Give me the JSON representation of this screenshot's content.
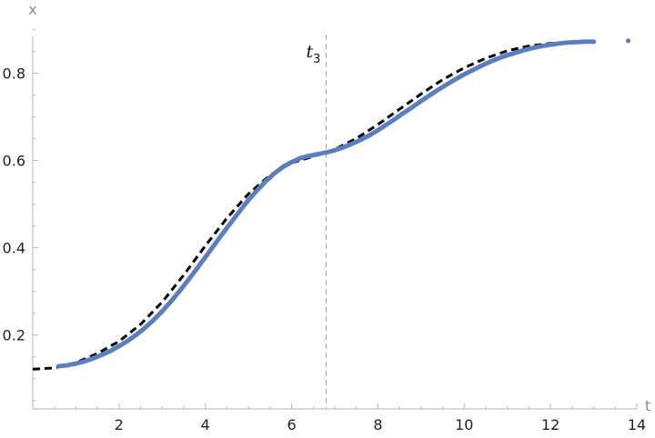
{
  "chart_data": {
    "type": "scatter",
    "title": "",
    "xlabel": "t",
    "ylabel": "x",
    "xlim": [
      0,
      14
    ],
    "ylim": [
      0.03,
      0.93
    ],
    "x_ticks": [
      2,
      4,
      6,
      8,
      10,
      12,
      14
    ],
    "y_ticks": [
      0.2,
      0.4,
      0.6,
      0.8
    ],
    "grid": false,
    "legend": "none",
    "annotation": {
      "base": "t",
      "subscript": "3",
      "x": 6.8,
      "style": "dashed vertical line"
    },
    "series": [
      {
        "style": "points",
        "color": "#5b7fbe",
        "points": [
          [
            0.6,
            0.128
          ],
          [
            0.8,
            0.13
          ],
          [
            1.0,
            0.134
          ],
          [
            1.2,
            0.139
          ],
          [
            1.4,
            0.146
          ],
          [
            1.6,
            0.154
          ],
          [
            1.8,
            0.163
          ],
          [
            2.0,
            0.174
          ],
          [
            2.2,
            0.186
          ],
          [
            2.4,
            0.2
          ],
          [
            2.6,
            0.216
          ],
          [
            2.8,
            0.234
          ],
          [
            3.0,
            0.254
          ],
          [
            3.2,
            0.276
          ],
          [
            3.4,
            0.3
          ],
          [
            3.6,
            0.325
          ],
          [
            3.8,
            0.351
          ],
          [
            4.0,
            0.378
          ],
          [
            4.2,
            0.405
          ],
          [
            4.4,
            0.432
          ],
          [
            4.6,
            0.458
          ],
          [
            4.8,
            0.484
          ],
          [
            5.0,
            0.509
          ],
          [
            5.2,
            0.531
          ],
          [
            5.4,
            0.552
          ],
          [
            5.6,
            0.57
          ],
          [
            5.8,
            0.585
          ],
          [
            6.0,
            0.596
          ],
          [
            6.2,
            0.605
          ],
          [
            6.4,
            0.61
          ],
          [
            6.6,
            0.614
          ],
          [
            6.8,
            0.618
          ],
          [
            7.0,
            0.623
          ],
          [
            7.2,
            0.63
          ],
          [
            7.4,
            0.638
          ],
          [
            7.6,
            0.647
          ],
          [
            7.8,
            0.657
          ],
          [
            8.0,
            0.669
          ],
          [
            8.2,
            0.682
          ],
          [
            8.4,
            0.695
          ],
          [
            8.6,
            0.709
          ],
          [
            8.8,
            0.722
          ],
          [
            9.0,
            0.736
          ],
          [
            9.2,
            0.749
          ],
          [
            9.4,
            0.762
          ],
          [
            9.6,
            0.774
          ],
          [
            9.8,
            0.786
          ],
          [
            10.0,
            0.797
          ],
          [
            10.2,
            0.807
          ],
          [
            10.4,
            0.817
          ],
          [
            10.6,
            0.826
          ],
          [
            10.8,
            0.834
          ],
          [
            11.0,
            0.841
          ],
          [
            11.2,
            0.847
          ],
          [
            11.4,
            0.853
          ],
          [
            11.6,
            0.858
          ],
          [
            11.8,
            0.862
          ],
          [
            12.0,
            0.865
          ],
          [
            12.2,
            0.868
          ],
          [
            12.4,
            0.87
          ],
          [
            12.6,
            0.871
          ],
          [
            12.8,
            0.872
          ],
          [
            13.0,
            0.872
          ],
          [
            13.8,
            0.874
          ]
        ]
      },
      {
        "style": "dashed-line",
        "color": "#000000",
        "points": [
          [
            0.0,
            0.121
          ],
          [
            0.5,
            0.124
          ],
          [
            1.0,
            0.136
          ],
          [
            1.5,
            0.157
          ],
          [
            2.0,
            0.185
          ],
          [
            2.5,
            0.224
          ],
          [
            3.0,
            0.275
          ],
          [
            3.5,
            0.337
          ],
          [
            4.0,
            0.404
          ],
          [
            4.5,
            0.467
          ],
          [
            5.0,
            0.523
          ],
          [
            5.5,
            0.566
          ],
          [
            6.0,
            0.594
          ],
          [
            6.5,
            0.609
          ],
          [
            7.0,
            0.625
          ],
          [
            7.5,
            0.65
          ],
          [
            8.0,
            0.682
          ],
          [
            8.5,
            0.717
          ],
          [
            9.0,
            0.752
          ],
          [
            9.5,
            0.785
          ],
          [
            10.0,
            0.812
          ],
          [
            10.5,
            0.834
          ],
          [
            11.0,
            0.851
          ],
          [
            11.5,
            0.862
          ],
          [
            12.0,
            0.868
          ],
          [
            12.5,
            0.871
          ],
          [
            13.0,
            0.872
          ]
        ]
      }
    ]
  }
}
